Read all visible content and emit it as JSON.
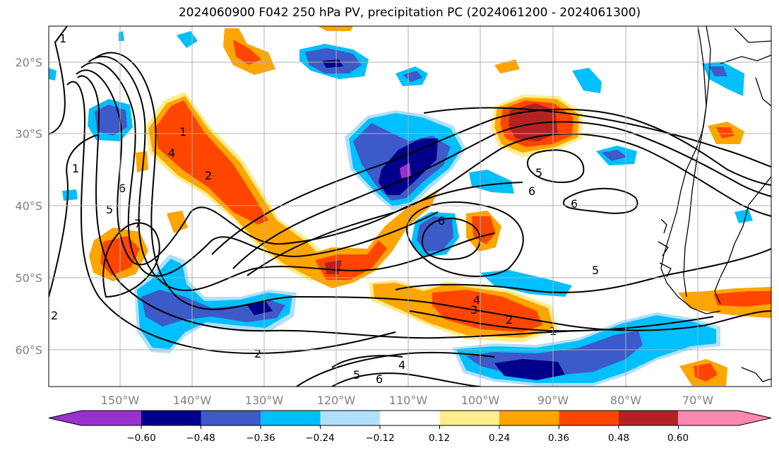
{
  "title": "2024060900 F042 250 hPa PV, precipitation PC (2024061200 - 2024061300)",
  "map": {
    "lon_labels": [
      "150°W",
      "140°W",
      "130°W",
      "120°W",
      "110°W",
      "100°W",
      "90°W",
      "80°W",
      "70°W"
    ],
    "lat_labels": [
      "20°S",
      "30°S",
      "40°S",
      "50°S",
      "60°S"
    ],
    "contour_labels": [
      "1",
      "1",
      "1",
      "2",
      "2",
      "2",
      "2",
      "3",
      "4",
      "4",
      "4",
      "5",
      "5",
      "5",
      "5",
      "6",
      "6",
      "6",
      "6",
      "6",
      "7",
      "1"
    ]
  },
  "colorbar": {
    "tick_labels": [
      "−0.60",
      "−0.48",
      "−0.36",
      "−0.24",
      "−0.12",
      "0.12",
      "0.24",
      "0.36",
      "0.48",
      "0.60"
    ],
    "colors": [
      "#9932cc",
      "#00008b",
      "#3c5ac8",
      "#00bfff",
      "#b0e0fa",
      "#ffffff",
      "#ffec8b",
      "#ffa500",
      "#ff4500",
      "#b22222",
      "#ff88b0"
    ]
  },
  "legend_colors": {
    "purple": "#9932cc",
    "navy": "#00008b",
    "royal": "#3c5ac8",
    "sky": "#00bfff",
    "pale_blue": "#b0e0fa",
    "pale_yellow": "#ffec8b",
    "orange": "#ffa500",
    "red_orange": "#ff4500",
    "dark_red": "#b22222"
  }
}
